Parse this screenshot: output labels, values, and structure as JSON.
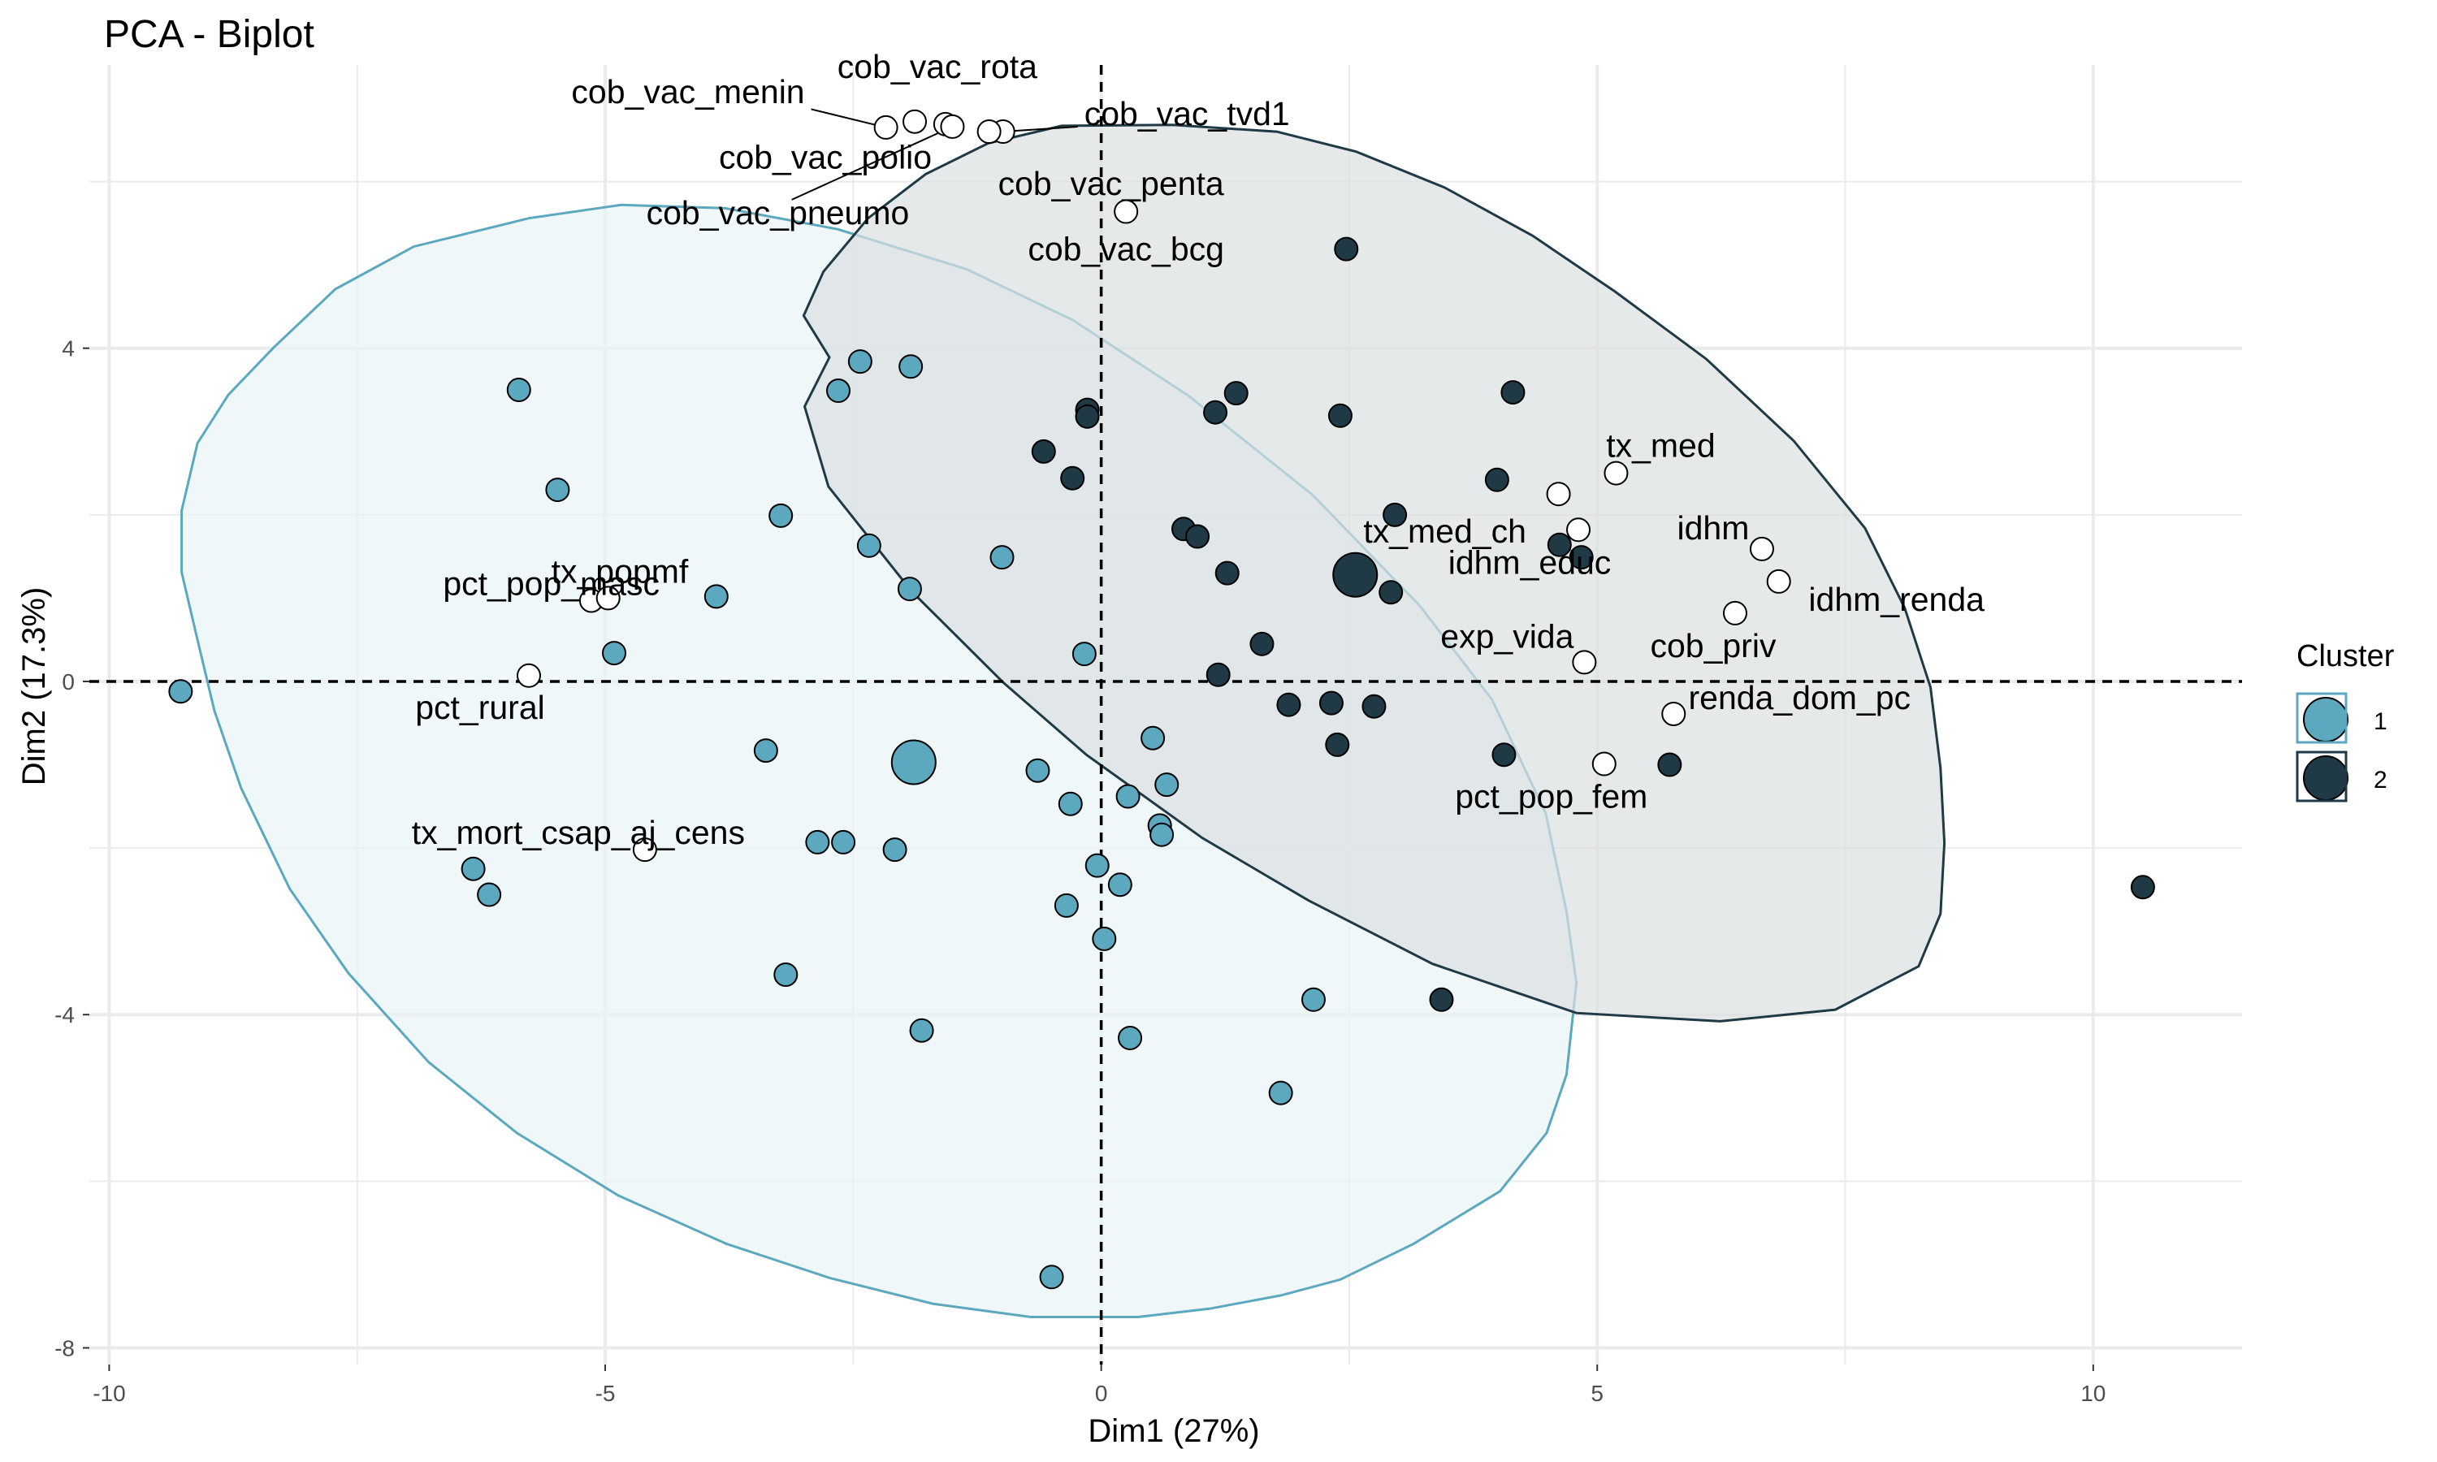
{
  "chart_data": {
    "type": "scatter",
    "title": "PCA - Biplot",
    "xlabel": "Dim1 (27%)",
    "ylabel": "Dim2 (17.3%)",
    "xlim": [
      -10.2,
      11.5
    ],
    "ylim": [
      -8.2,
      7.4
    ],
    "x_ticks": [
      -10,
      -5,
      0,
      5,
      10
    ],
    "x_tick_labels": [
      "-10",
      "-5",
      "0",
      "5",
      "10"
    ],
    "y_ticks": [
      -8,
      -4,
      0,
      4
    ],
    "y_tick_labels": [
      "-8",
      "-4",
      "0",
      "4"
    ],
    "grid": true,
    "reference_lines": {
      "x": 0,
      "y": 0,
      "style": "dashed"
    },
    "legend": {
      "title": "Cluster",
      "position": "right",
      "entries": [
        "1",
        "2"
      ]
    },
    "colors": {
      "cluster_1": "#5ba8bf",
      "cluster_2": "#203a45",
      "ellipse_1_fill": "#e8f3f6",
      "ellipse_2_fill": "#dcdfe1",
      "variable_points": "#ffffff",
      "grid": "#ebebeb"
    },
    "ellipses": [
      {
        "cluster": "1",
        "points": [
          [
            -8.34,
            4.01
          ],
          [
            -7.72,
            4.71
          ],
          [
            -6.93,
            5.22
          ],
          [
            -5.77,
            5.56
          ],
          [
            -4.84,
            5.72
          ],
          [
            -3.79,
            5.68
          ],
          [
            -2.66,
            5.43
          ],
          [
            -1.36,
            4.95
          ],
          [
            -0.29,
            4.34
          ],
          [
            0.88,
            3.43
          ],
          [
            2.13,
            2.24
          ],
          [
            3.21,
            0.91
          ],
          [
            3.94,
            -0.22
          ],
          [
            4.48,
            -1.58
          ],
          [
            4.69,
            -2.76
          ],
          [
            4.79,
            -3.62
          ],
          [
            4.69,
            -4.72
          ],
          [
            4.49,
            -5.42
          ],
          [
            4.02,
            -6.12
          ],
          [
            3.15,
            -6.75
          ],
          [
            2.41,
            -7.18
          ],
          [
            1.81,
            -7.37
          ],
          [
            1.09,
            -7.53
          ],
          [
            0.37,
            -7.63
          ],
          [
            -0.71,
            -7.63
          ],
          [
            -1.7,
            -7.47
          ],
          [
            -2.74,
            -7.16
          ],
          [
            -3.78,
            -6.75
          ],
          [
            -4.87,
            -6.17
          ],
          [
            -5.89,
            -5.42
          ],
          [
            -6.78,
            -4.57
          ],
          [
            -7.59,
            -3.5
          ],
          [
            -8.18,
            -2.49
          ],
          [
            -8.67,
            -1.28
          ],
          [
            -8.94,
            -0.35
          ],
          [
            -9.11,
            0.5
          ],
          [
            -9.27,
            1.31
          ],
          [
            -9.27,
            2.05
          ],
          [
            -9.11,
            2.86
          ],
          [
            -8.8,
            3.44
          ]
        ]
      },
      {
        "cluster": "2",
        "points": [
          [
            -2.74,
            3.89
          ],
          [
            -2.99,
            3.3
          ],
          [
            -2.75,
            2.34
          ],
          [
            -1.91,
            1.08
          ],
          [
            -0.99,
            -0.01
          ],
          [
            -0.15,
            -0.88
          ],
          [
            1.02,
            -1.88
          ],
          [
            2.09,
            -2.63
          ],
          [
            3.34,
            -3.39
          ],
          [
            4.79,
            -3.98
          ],
          [
            6.24,
            -4.08
          ],
          [
            7.4,
            -3.94
          ],
          [
            8.24,
            -3.42
          ],
          [
            8.46,
            -2.79
          ],
          [
            8.5,
            -1.94
          ],
          [
            8.46,
            -1.04
          ],
          [
            8.36,
            -0.07
          ],
          [
            8.1,
            0.88
          ],
          [
            7.7,
            1.84
          ],
          [
            6.98,
            2.89
          ],
          [
            6.1,
            3.87
          ],
          [
            5.18,
            4.68
          ],
          [
            4.35,
            5.35
          ],
          [
            3.46,
            5.93
          ],
          [
            2.57,
            6.36
          ],
          [
            1.77,
            6.6
          ],
          [
            0.72,
            6.68
          ],
          [
            -0.4,
            6.67
          ],
          [
            -1.14,
            6.46
          ],
          [
            -1.77,
            6.09
          ],
          [
            -2.35,
            5.56
          ],
          [
            -2.8,
            4.92
          ],
          [
            -3.0,
            4.39
          ]
        ]
      }
    ],
    "series": [
      {
        "name": "1",
        "points": [
          [
            -9.28,
            -0.12
          ],
          [
            -5.87,
            3.5
          ],
          [
            -5.48,
            2.3
          ],
          [
            -2.43,
            3.84
          ],
          [
            -1.92,
            3.78
          ],
          [
            -2.65,
            3.49
          ],
          [
            -3.23,
            1.99
          ],
          [
            -2.34,
            1.63
          ],
          [
            -1.93,
            1.11
          ],
          [
            -1.0,
            1.49
          ],
          [
            -3.88,
            1.02
          ],
          [
            -4.91,
            0.34
          ],
          [
            -0.17,
            0.33
          ],
          [
            -3.38,
            -0.83
          ],
          [
            -2.86,
            -1.93
          ],
          [
            -2.6,
            -1.93
          ],
          [
            -2.08,
            -2.02
          ],
          [
            -0.64,
            -1.07
          ],
          [
            -0.31,
            -1.47
          ],
          [
            0.27,
            -1.38
          ],
          [
            0.66,
            -1.24
          ],
          [
            0.52,
            -0.68
          ],
          [
            0.59,
            -1.73
          ],
          [
            0.61,
            -1.84
          ],
          [
            -0.04,
            -2.21
          ],
          [
            0.19,
            -2.44
          ],
          [
            -0.35,
            -2.69
          ],
          [
            0.03,
            -3.09
          ],
          [
            -6.33,
            -2.25
          ],
          [
            -6.17,
            -2.56
          ],
          [
            -3.18,
            -3.52
          ],
          [
            -1.81,
            -4.19
          ],
          [
            0.29,
            -4.28
          ],
          [
            2.14,
            -3.82
          ],
          [
            1.81,
            -4.94
          ],
          [
            -0.5,
            -7.15
          ]
        ]
      },
      {
        "name": "2",
        "points": [
          [
            2.47,
            5.19
          ],
          [
            1.36,
            3.46
          ],
          [
            1.15,
            3.23
          ],
          [
            2.41,
            3.19
          ],
          [
            4.15,
            3.47
          ],
          [
            -0.14,
            3.26
          ],
          [
            -0.14,
            3.18
          ],
          [
            -0.58,
            2.76
          ],
          [
            -0.29,
            2.44
          ],
          [
            0.83,
            1.83
          ],
          [
            0.97,
            1.74
          ],
          [
            1.27,
            1.3
          ],
          [
            2.96,
            2.0
          ],
          [
            3.99,
            2.42
          ],
          [
            2.92,
            1.07
          ],
          [
            4.62,
            1.64
          ],
          [
            4.84,
            1.49
          ],
          [
            1.62,
            0.45
          ],
          [
            1.18,
            0.08
          ],
          [
            1.89,
            -0.28
          ],
          [
            2.32,
            -0.26
          ],
          [
            2.38,
            -0.76
          ],
          [
            2.75,
            -0.3
          ],
          [
            4.06,
            -0.88
          ],
          [
            5.73,
            -1.0
          ],
          [
            3.43,
            -3.82
          ],
          [
            10.5,
            -2.47
          ]
        ]
      }
    ],
    "centroids": [
      {
        "cluster": "1",
        "x": -1.89,
        "y": -0.97
      },
      {
        "cluster": "2",
        "x": 2.56,
        "y": 1.28
      }
    ],
    "variables": [
      {
        "name": "cob_vac_menin",
        "x": -2.17,
        "y": 6.65
      },
      {
        "name": "cob_vac_rota",
        "x": -1.57,
        "y": 6.69
      },
      {
        "name": "cob_vac_tvd1",
        "x": -0.99,
        "y": 6.6
      },
      {
        "name": "cob_vac_polio",
        "x": -1.88,
        "y": 6.72
      },
      {
        "name": "cob_vac_penta",
        "x": -1.13,
        "y": 6.6
      },
      {
        "name": "cob_vac_pneumo",
        "x": -1.5,
        "y": 6.66
      },
      {
        "name": "cob_vac_bcg",
        "x": 0.25,
        "y": 5.64
      },
      {
        "name": "tx_med",
        "x": 5.19,
        "y": 2.5
      },
      {
        "name": "tx_med_ch",
        "x": 4.61,
        "y": 2.25
      },
      {
        "name": "idhm",
        "x": 6.66,
        "y": 1.59
      },
      {
        "name": "idhm_educ",
        "x": 4.81,
        "y": 1.82
      },
      {
        "name": "idhm_renda",
        "x": 6.83,
        "y": 1.2
      },
      {
        "name": "exp_vida",
        "x": 4.87,
        "y": 0.23
      },
      {
        "name": "cob_priv",
        "x": 6.39,
        "y": 0.82
      },
      {
        "name": "renda_dom_pc",
        "x": 5.77,
        "y": -0.39
      },
      {
        "name": "pct_pop_fem",
        "x": 5.07,
        "y": -0.99
      },
      {
        "name": "tx_popmf",
        "x": -5.14,
        "y": 0.97
      },
      {
        "name": "pct_pop_masc",
        "x": -4.97,
        "y": 1.0
      },
      {
        "name": "pct_rural",
        "x": -5.77,
        "y": 0.07
      },
      {
        "name": "tx_mort_csap_aj_cens",
        "x": -4.6,
        "y": -2.02
      }
    ]
  }
}
